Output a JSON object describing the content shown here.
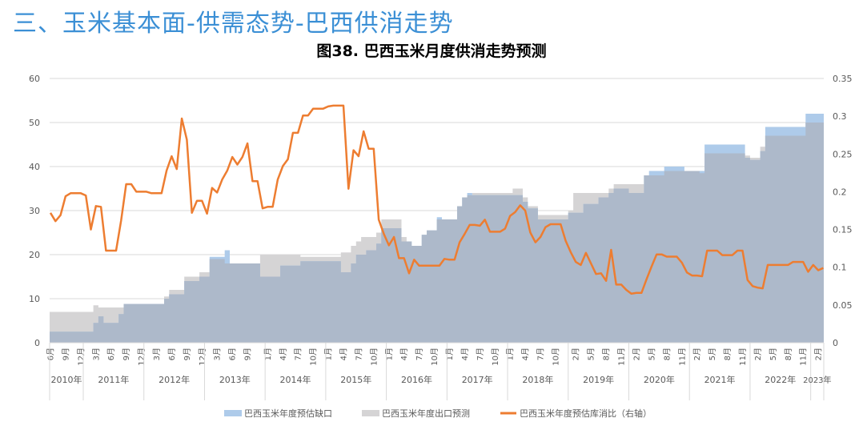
{
  "header": {
    "section_title": "三、玉米基本面-供需态势-巴西供消走势"
  },
  "chart_data": {
    "type": "area+line",
    "title": "图38. 巴西玉米月度供消走势预测",
    "xlabel": "",
    "ylabel": "",
    "y2label": "",
    "ylim": [
      0,
      60
    ],
    "y_ticks": [
      "0",
      "10",
      "20",
      "30",
      "40",
      "50",
      "60"
    ],
    "y2lim": [
      0,
      0.35
    ],
    "y2_ticks": [
      "0",
      "0.05",
      "0.1",
      "0.15",
      "0.2",
      "0.25",
      "0.3",
      "0.35"
    ],
    "grid": true,
    "legend_position": "bottom",
    "x": [
      "2010-06",
      "2010-07",
      "2010-08",
      "2010-09",
      "2010-10",
      "2010-11",
      "2010-12",
      "2011-01",
      "2011-02",
      "2011-03",
      "2011-04",
      "2011-05",
      "2011-06",
      "2011-07",
      "2011-08",
      "2011-09",
      "2011-10",
      "2011-11",
      "2011-12",
      "2012-01",
      "2012-02",
      "2012-03",
      "2012-04",
      "2012-05",
      "2012-06",
      "2012-07",
      "2012-08",
      "2012-09",
      "2012-10",
      "2012-11",
      "2012-12",
      "2013-01",
      "2013-02",
      "2013-03",
      "2013-04",
      "2013-05",
      "2013-06",
      "2013-07",
      "2013-08",
      "2013-09",
      "2013-10",
      "2013-11",
      "2013-12",
      "2014-01",
      "2014-02",
      "2014-03",
      "2014-04",
      "2014-05",
      "2014-06",
      "2014-07",
      "2014-08",
      "2014-09",
      "2014-10",
      "2014-11",
      "2014-12",
      "2015-01",
      "2015-02",
      "2015-03",
      "2015-04",
      "2015-05",
      "2015-06",
      "2015-07",
      "2015-08",
      "2015-09",
      "2015-10",
      "2015-11",
      "2015-12",
      "2016-01",
      "2016-02",
      "2016-03",
      "2016-04",
      "2016-05",
      "2016-06",
      "2016-07",
      "2016-08",
      "2016-09",
      "2016-10",
      "2016-11",
      "2016-12",
      "2017-01",
      "2017-02",
      "2017-03",
      "2017-04",
      "2017-05",
      "2017-06",
      "2017-07",
      "2017-08",
      "2017-09",
      "2017-10",
      "2017-11",
      "2017-12",
      "2018-01",
      "2018-02",
      "2018-03",
      "2018-04",
      "2018-05",
      "2018-06",
      "2018-07",
      "2018-08",
      "2018-09",
      "2018-10",
      "2018-11",
      "2018-12",
      "2019-01",
      "2019-02",
      "2019-03",
      "2019-04",
      "2019-05",
      "2019-06",
      "2019-07",
      "2019-08",
      "2019-09",
      "2019-10",
      "2019-11",
      "2019-12",
      "2020-01",
      "2020-02",
      "2020-03",
      "2020-04",
      "2020-05",
      "2020-06",
      "2020-07",
      "2020-08",
      "2020-09",
      "2020-10",
      "2020-11",
      "2020-12",
      "2021-01",
      "2021-02",
      "2021-03",
      "2021-04",
      "2021-05",
      "2021-06",
      "2021-07",
      "2021-08",
      "2021-09",
      "2021-10",
      "2021-11",
      "2021-12",
      "2022-01",
      "2022-02",
      "2022-03",
      "2022-04",
      "2022-05",
      "2022-06",
      "2022-07",
      "2022-08",
      "2022-09",
      "2022-10",
      "2022-11",
      "2022-12",
      "2023-01",
      "2023-02",
      "2023-03"
    ],
    "x_ticks": [
      {
        "x": "2010-06",
        "label": "6月"
      },
      {
        "x": "2010-09",
        "label": "9月"
      },
      {
        "x": "2010-12",
        "label": "12月"
      },
      {
        "x": "2011-03",
        "label": "3月"
      },
      {
        "x": "2011-06",
        "label": "6月"
      },
      {
        "x": "2011-09",
        "label": "9月"
      },
      {
        "x": "2011-12",
        "label": "12月"
      },
      {
        "x": "2012-03",
        "label": "3月"
      },
      {
        "x": "2012-06",
        "label": "6月"
      },
      {
        "x": "2012-09",
        "label": "9月"
      },
      {
        "x": "2012-12",
        "label": "12月"
      },
      {
        "x": "2013-03",
        "label": "3月"
      },
      {
        "x": "2013-06",
        "label": "6月"
      },
      {
        "x": "2013-09",
        "label": "9月"
      },
      {
        "x": "2014-01",
        "label": "1月"
      },
      {
        "x": "2014-04",
        "label": "4月"
      },
      {
        "x": "2014-07",
        "label": "7月"
      },
      {
        "x": "2014-10",
        "label": "10月"
      },
      {
        "x": "2015-01",
        "label": "1月"
      },
      {
        "x": "2015-04",
        "label": "4月"
      },
      {
        "x": "2015-07",
        "label": "7月"
      },
      {
        "x": "2015-10",
        "label": "10月"
      },
      {
        "x": "2016-01",
        "label": "1月"
      },
      {
        "x": "2016-04",
        "label": "4月"
      },
      {
        "x": "2016-07",
        "label": "7月"
      },
      {
        "x": "2016-10",
        "label": "10月"
      },
      {
        "x": "2017-01",
        "label": "1月"
      },
      {
        "x": "2017-04",
        "label": "4月"
      },
      {
        "x": "2017-07",
        "label": "7月"
      },
      {
        "x": "2017-10",
        "label": "10月"
      },
      {
        "x": "2018-01",
        "label": "1月"
      },
      {
        "x": "2018-04",
        "label": "4月"
      },
      {
        "x": "2018-07",
        "label": "7月"
      },
      {
        "x": "2018-10",
        "label": "10月"
      },
      {
        "x": "2019-02",
        "label": "2月"
      },
      {
        "x": "2019-05",
        "label": "5月"
      },
      {
        "x": "2019-08",
        "label": "8月"
      },
      {
        "x": "2019-11",
        "label": "11月"
      },
      {
        "x": "2020-02",
        "label": "2月"
      },
      {
        "x": "2020-05",
        "label": "5月"
      },
      {
        "x": "2020-08",
        "label": "8月"
      },
      {
        "x": "2020-11",
        "label": "11月"
      },
      {
        "x": "2021-02",
        "label": "2月"
      },
      {
        "x": "2021-05",
        "label": "5月"
      },
      {
        "x": "2021-08",
        "label": "8月"
      },
      {
        "x": "2021-11",
        "label": "11月"
      },
      {
        "x": "2022-02",
        "label": "2月"
      },
      {
        "x": "2022-05",
        "label": "5月"
      },
      {
        "x": "2022-08",
        "label": "8月"
      },
      {
        "x": "2022-11",
        "label": "11月"
      },
      {
        "x": "2023-02",
        "label": "2月"
      }
    ],
    "year_groups": [
      {
        "label": "2010年",
        "start": "2010-06",
        "end": "2010-12"
      },
      {
        "label": "2011年",
        "start": "2011-01",
        "end": "2011-12"
      },
      {
        "label": "2012年",
        "start": "2012-01",
        "end": "2012-12"
      },
      {
        "label": "2013年",
        "start": "2013-01",
        "end": "2013-12"
      },
      {
        "label": "2014年",
        "start": "2014-01",
        "end": "2014-12"
      },
      {
        "label": "2015年",
        "start": "2015-01",
        "end": "2015-12"
      },
      {
        "label": "2016年",
        "start": "2016-01",
        "end": "2016-12"
      },
      {
        "label": "2017年",
        "start": "2017-01",
        "end": "2017-12"
      },
      {
        "label": "2018年",
        "start": "2018-01",
        "end": "2018-12"
      },
      {
        "label": "2019年",
        "start": "2019-01",
        "end": "2019-12"
      },
      {
        "label": "2020年",
        "start": "2020-01",
        "end": "2020-12"
      },
      {
        "label": "2021年",
        "start": "2021-01",
        "end": "2021-12"
      },
      {
        "label": "2022年",
        "start": "2022-01",
        "end": "2022-12"
      },
      {
        "label": "2023年",
        "start": "2023-01",
        "end": "2023-03"
      }
    ],
    "series": [
      {
        "name": "巴西玉米年度预估缺口",
        "type": "area",
        "axis": "left",
        "color": "#aecbea",
        "values": [
          2.5,
          2.5,
          2.5,
          2.5,
          2.5,
          2.5,
          2.5,
          2.5,
          2.5,
          4.5,
          6,
          4.5,
          4.5,
          4.5,
          6.5,
          8.8,
          8.8,
          8.8,
          8.8,
          8.8,
          8.8,
          8.8,
          8.8,
          10,
          11,
          11,
          11,
          14,
          14,
          14,
          15,
          15,
          19.5,
          19.5,
          19.5,
          21,
          18,
          18,
          18,
          18,
          18,
          18,
          15,
          15,
          15,
          15,
          17.5,
          17.5,
          17.5,
          17.5,
          18.5,
          18.5,
          18.5,
          18.5,
          18.5,
          18.5,
          18.5,
          18.5,
          16,
          16,
          18,
          20,
          20,
          21,
          21,
          22.5,
          26,
          26,
          26,
          26,
          23,
          23,
          22,
          22,
          24.5,
          25.5,
          25.5,
          28.5,
          28,
          28,
          28,
          31,
          33,
          34,
          33.5,
          33.5,
          33.5,
          33.5,
          33.5,
          33.5,
          33.5,
          33.5,
          33.5,
          33.5,
          32,
          30.5,
          30.5,
          28,
          28,
          28,
          28,
          28,
          28,
          29.5,
          29.5,
          29.5,
          31.5,
          31.5,
          31.5,
          33,
          33,
          34,
          35,
          35,
          35,
          34,
          34,
          34,
          38,
          39,
          39,
          39,
          40,
          40,
          40,
          40,
          39,
          39,
          39,
          39,
          45,
          45,
          45,
          45,
          45,
          45,
          45,
          45,
          42,
          41.5,
          41.5,
          43.5,
          49,
          49,
          49,
          49,
          49,
          49,
          49,
          49,
          52,
          52,
          52,
          52
        ]
      },
      {
        "name": "巴西玉米年度出口预测",
        "type": "area",
        "axis": "left",
        "color": "#d5d4d5",
        "values": [
          7,
          7,
          7,
          7,
          7,
          7,
          7,
          7,
          7,
          8.5,
          8,
          8,
          8,
          8,
          8,
          8.8,
          8.8,
          8.8,
          8.8,
          8.8,
          8.8,
          8.8,
          8.8,
          10.5,
          12,
          12,
          12,
          15,
          15,
          15,
          16,
          16,
          19,
          19,
          19,
          18,
          18,
          18,
          18,
          18,
          18,
          18,
          20,
          20,
          20,
          20,
          20,
          20,
          20,
          20,
          19.5,
          19.5,
          19.5,
          19.5,
          19.5,
          19.5,
          19.5,
          19.5,
          20.5,
          20.5,
          22,
          23,
          24,
          24,
          24,
          25,
          28,
          28,
          28,
          28,
          24,
          23,
          22,
          22,
          24.5,
          25.5,
          25.5,
          28,
          28,
          28,
          28,
          31,
          33,
          33.5,
          34,
          34,
          34,
          34,
          34,
          34,
          34,
          34,
          35,
          35,
          33,
          31,
          31,
          29,
          29,
          29,
          29,
          29,
          29,
          30,
          34,
          34,
          34,
          34,
          34,
          34,
          34,
          35,
          36,
          36,
          36,
          36,
          36,
          36,
          38,
          38,
          38,
          38,
          39,
          39,
          39,
          39,
          39,
          39,
          39,
          38.5,
          43,
          43,
          43,
          43,
          43,
          43,
          43,
          43,
          42.5,
          42,
          42,
          44.5,
          47,
          47,
          47,
          47,
          47,
          47,
          47,
          47,
          50,
          50,
          50,
          50
        ]
      },
      {
        "name": "巴西玉米年度预估库消比（右轴）",
        "type": "line",
        "axis": "right",
        "color": "#ed7d31",
        "values": [
          0.172,
          0.161,
          0.169,
          0.194,
          0.198,
          0.198,
          0.198,
          0.195,
          0.15,
          0.181,
          0.18,
          0.122,
          0.122,
          0.122,
          0.162,
          0.21,
          0.21,
          0.2,
          0.2,
          0.2,
          0.198,
          0.198,
          0.198,
          0.228,
          0.247,
          0.23,
          0.297,
          0.269,
          0.172,
          0.188,
          0.188,
          0.171,
          0.205,
          0.199,
          0.216,
          0.228,
          0.246,
          0.236,
          0.246,
          0.264,
          0.214,
          0.214,
          0.178,
          0.18,
          0.18,
          0.216,
          0.234,
          0.243,
          0.278,
          0.278,
          0.301,
          0.301,
          0.31,
          0.31,
          0.31,
          0.313,
          0.314,
          0.314,
          0.314,
          0.204,
          0.255,
          0.247,
          0.28,
          0.257,
          0.257,
          0.163,
          0.144,
          0.129,
          0.14,
          0.112,
          0.112,
          0.092,
          0.11,
          0.102,
          0.102,
          0.102,
          0.102,
          0.102,
          0.111,
          0.11,
          0.11,
          0.133,
          0.144,
          0.156,
          0.156,
          0.155,
          0.163,
          0.147,
          0.147,
          0.147,
          0.151,
          0.168,
          0.173,
          0.182,
          0.175,
          0.146,
          0.133,
          0.14,
          0.153,
          0.157,
          0.157,
          0.157,
          0.135,
          0.12,
          0.107,
          0.103,
          0.119,
          0.105,
          0.091,
          0.092,
          0.082,
          0.123,
          0.077,
          0.077,
          0.07,
          0.065,
          0.066,
          0.066,
          0.084,
          0.101,
          0.117,
          0.117,
          0.114,
          0.114,
          0.114,
          0.106,
          0.093,
          0.089,
          0.089,
          0.088,
          0.122,
          0.122,
          0.122,
          0.116,
          0.116,
          0.116,
          0.122,
          0.122,
          0.083,
          0.075,
          0.073,
          0.072,
          0.103,
          0.103,
          0.103,
          0.103,
          0.103,
          0.107,
          0.107,
          0.107,
          0.094,
          0.103,
          0.096,
          0.099
        ]
      }
    ],
    "overlap_color": "#adb9ca"
  }
}
